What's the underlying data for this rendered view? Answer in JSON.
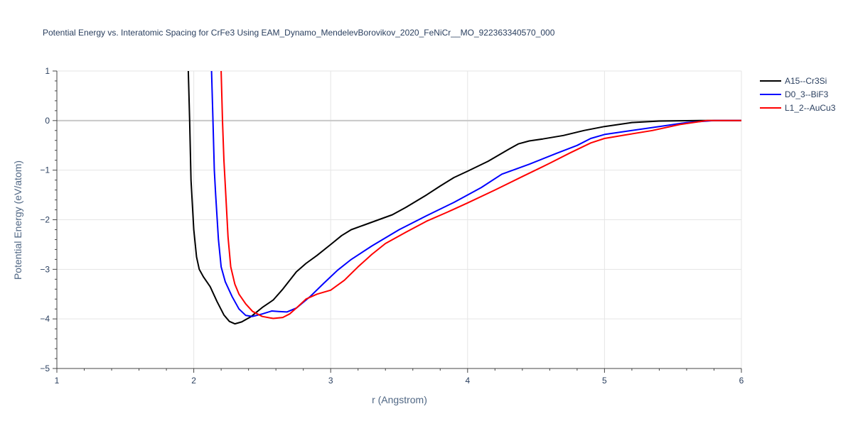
{
  "chart_data": {
    "type": "line",
    "title": "Potential Energy vs. Interatomic Spacing for CrFe3 Using EAM_Dynamo_MendelevBorovikov_2020_FeNiCr__MO_922363340570_000",
    "xlabel": "r (Angstrom)",
    "ylabel": "Potential Energy (eV/atom)",
    "xlim": [
      1,
      6
    ],
    "ylim": [
      -5,
      1
    ],
    "xticks": [
      1,
      2,
      3,
      4,
      5,
      6
    ],
    "yticks": [
      1,
      0,
      -1,
      -2,
      -3,
      -4,
      -5
    ],
    "ytick_labels": [
      "1",
      "0",
      "−1",
      "−2",
      "−3",
      "−4",
      "−5"
    ],
    "grid": true,
    "legend_position": "top-right",
    "series": [
      {
        "name": "A15--Cr3Si",
        "color": "#000000",
        "points": [
          [
            1.96,
            1.0
          ],
          [
            1.97,
            0.0
          ],
          [
            1.98,
            -1.2
          ],
          [
            2.0,
            -2.2
          ],
          [
            2.02,
            -2.75
          ],
          [
            2.04,
            -3.0
          ],
          [
            2.07,
            -3.15
          ],
          [
            2.12,
            -3.35
          ],
          [
            2.17,
            -3.65
          ],
          [
            2.22,
            -3.92
          ],
          [
            2.26,
            -4.05
          ],
          [
            2.3,
            -4.1
          ],
          [
            2.35,
            -4.06
          ],
          [
            2.42,
            -3.95
          ],
          [
            2.5,
            -3.77
          ],
          [
            2.58,
            -3.62
          ],
          [
            2.65,
            -3.4
          ],
          [
            2.75,
            -3.05
          ],
          [
            2.82,
            -2.88
          ],
          [
            2.9,
            -2.72
          ],
          [
            3.0,
            -2.5
          ],
          [
            3.08,
            -2.32
          ],
          [
            3.15,
            -2.2
          ],
          [
            3.25,
            -2.1
          ],
          [
            3.35,
            -2.0
          ],
          [
            3.45,
            -1.9
          ],
          [
            3.55,
            -1.75
          ],
          [
            3.7,
            -1.5
          ],
          [
            3.8,
            -1.32
          ],
          [
            3.9,
            -1.15
          ],
          [
            4.0,
            -1.02
          ],
          [
            4.15,
            -0.82
          ],
          [
            4.3,
            -0.58
          ],
          [
            4.37,
            -0.47
          ],
          [
            4.45,
            -0.41
          ],
          [
            4.55,
            -0.37
          ],
          [
            4.7,
            -0.3
          ],
          [
            4.85,
            -0.2
          ],
          [
            5.0,
            -0.12
          ],
          [
            5.2,
            -0.04
          ],
          [
            5.4,
            -0.01
          ],
          [
            5.7,
            0.0
          ],
          [
            6.0,
            0.0
          ]
        ]
      },
      {
        "name": "D0_3--BiF3",
        "color": "#0000ff",
        "points": [
          [
            2.13,
            1.0
          ],
          [
            2.14,
            0.0
          ],
          [
            2.15,
            -1.0
          ],
          [
            2.16,
            -1.5
          ],
          [
            2.18,
            -2.4
          ],
          [
            2.2,
            -2.95
          ],
          [
            2.23,
            -3.25
          ],
          [
            2.28,
            -3.55
          ],
          [
            2.33,
            -3.8
          ],
          [
            2.38,
            -3.93
          ],
          [
            2.43,
            -3.95
          ],
          [
            2.5,
            -3.9
          ],
          [
            2.57,
            -3.84
          ],
          [
            2.62,
            -3.85
          ],
          [
            2.68,
            -3.86
          ],
          [
            2.75,
            -3.78
          ],
          [
            2.85,
            -3.55
          ],
          [
            2.95,
            -3.28
          ],
          [
            3.05,
            -3.02
          ],
          [
            3.15,
            -2.8
          ],
          [
            3.3,
            -2.53
          ],
          [
            3.5,
            -2.2
          ],
          [
            3.7,
            -1.92
          ],
          [
            3.9,
            -1.65
          ],
          [
            4.1,
            -1.35
          ],
          [
            4.25,
            -1.08
          ],
          [
            4.45,
            -0.88
          ],
          [
            4.65,
            -0.66
          ],
          [
            4.8,
            -0.5
          ],
          [
            4.9,
            -0.36
          ],
          [
            5.0,
            -0.28
          ],
          [
            5.2,
            -0.2
          ],
          [
            5.4,
            -0.12
          ],
          [
            5.6,
            -0.04
          ],
          [
            5.8,
            0.0
          ],
          [
            6.0,
            0.0
          ]
        ]
      },
      {
        "name": "L1_2--AuCu3",
        "color": "#ff0000",
        "points": [
          [
            2.2,
            1.0
          ],
          [
            2.21,
            0.0
          ],
          [
            2.22,
            -0.8
          ],
          [
            2.23,
            -1.3
          ],
          [
            2.25,
            -2.35
          ],
          [
            2.27,
            -2.95
          ],
          [
            2.3,
            -3.3
          ],
          [
            2.33,
            -3.5
          ],
          [
            2.38,
            -3.7
          ],
          [
            2.43,
            -3.85
          ],
          [
            2.5,
            -3.95
          ],
          [
            2.58,
            -3.99
          ],
          [
            2.65,
            -3.97
          ],
          [
            2.7,
            -3.9
          ],
          [
            2.75,
            -3.78
          ],
          [
            2.82,
            -3.6
          ],
          [
            2.9,
            -3.5
          ],
          [
            3.0,
            -3.42
          ],
          [
            3.1,
            -3.22
          ],
          [
            3.2,
            -2.95
          ],
          [
            3.3,
            -2.7
          ],
          [
            3.4,
            -2.48
          ],
          [
            3.55,
            -2.25
          ],
          [
            3.7,
            -2.03
          ],
          [
            3.85,
            -1.85
          ],
          [
            4.0,
            -1.66
          ],
          [
            4.2,
            -1.4
          ],
          [
            4.4,
            -1.13
          ],
          [
            4.6,
            -0.86
          ],
          [
            4.75,
            -0.65
          ],
          [
            4.9,
            -0.45
          ],
          [
            5.0,
            -0.36
          ],
          [
            5.15,
            -0.29
          ],
          [
            5.35,
            -0.2
          ],
          [
            5.55,
            -0.08
          ],
          [
            5.75,
            0.0
          ],
          [
            6.0,
            0.0
          ]
        ]
      }
    ]
  }
}
